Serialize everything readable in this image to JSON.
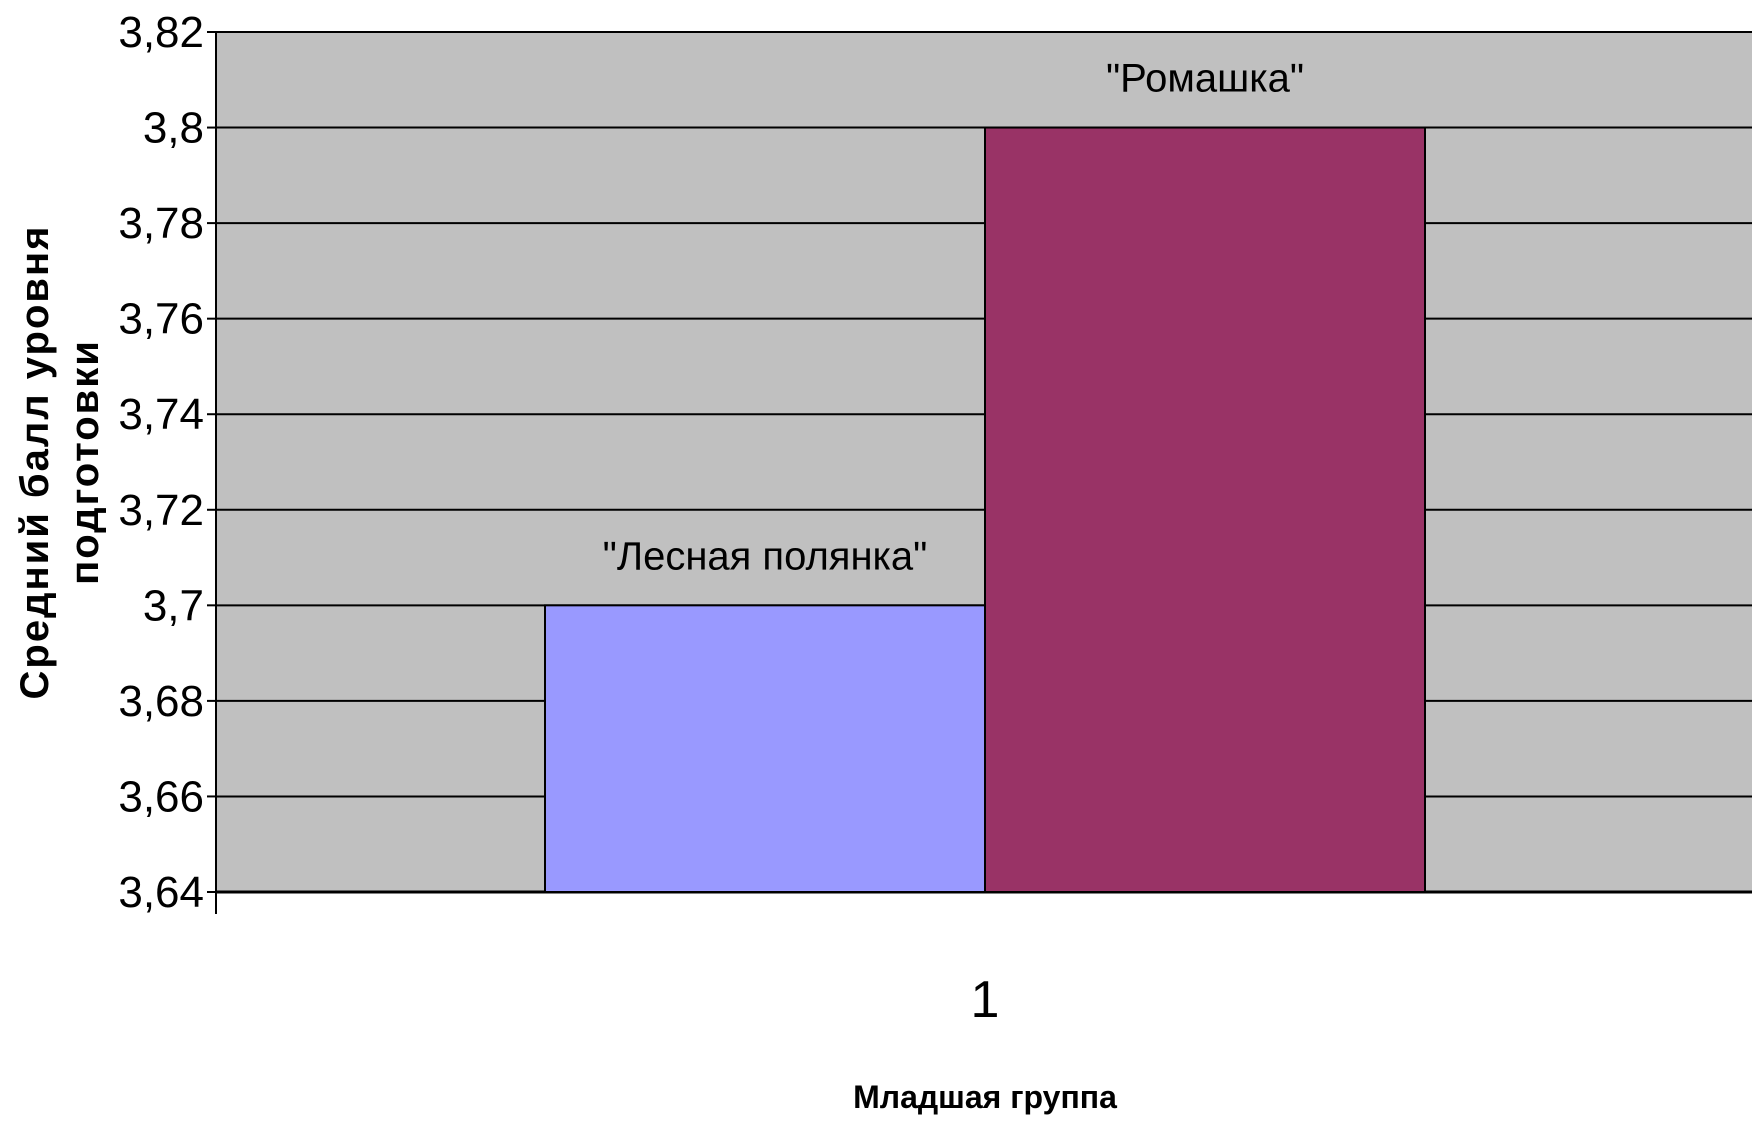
{
  "chart_data": {
    "type": "bar",
    "title": "",
    "categories": [
      "1"
    ],
    "series": [
      {
        "name": "\"Лесная полянка\"",
        "values": [
          3.7
        ],
        "color": "#9999ff"
      },
      {
        "name": "\"Ромашка\"",
        "values": [
          3.8
        ],
        "color": "#993366"
      }
    ],
    "data_labels": [
      "\"Лесная полянка\"",
      "\"Ромашка\""
    ],
    "xlabel": "Младшая группа",
    "ylabel_lines": [
      "Средний балл уровня",
      "подготовки"
    ],
    "ylim": [
      3.64,
      3.82
    ],
    "y_ticks": [
      "3,64",
      "3,66",
      "3,68",
      "3,7",
      "3,72",
      "3,74",
      "3,76",
      "3,78",
      "3,8",
      "3,82"
    ],
    "grid": true,
    "legend": "none",
    "plot_background": "#c0c0c0"
  }
}
